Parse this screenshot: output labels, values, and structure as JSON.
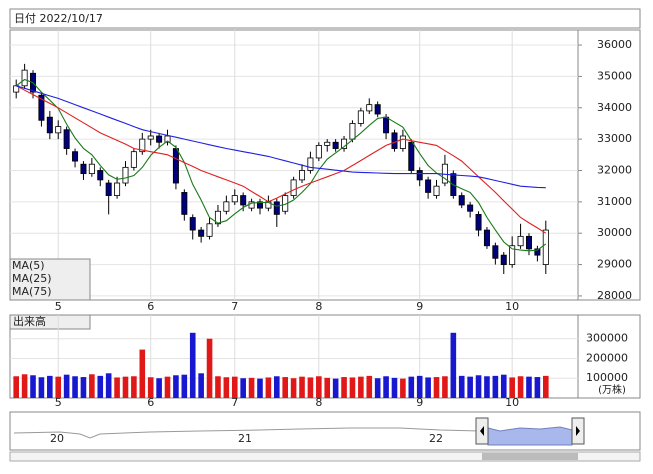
{
  "chart_data": {
    "type": "candlestick",
    "title": "日付 2022/10/17",
    "categories": [
      null,
      null,
      null,
      null,
      null,
      "5",
      null,
      null,
      null,
      null,
      null,
      null,
      null,
      null,
      null,
      null,
      "6",
      null,
      null,
      null,
      null,
      null,
      null,
      null,
      null,
      null,
      "7",
      null,
      null,
      null,
      null,
      null,
      null,
      null,
      null,
      null,
      "8",
      null,
      null,
      null,
      null,
      null,
      null,
      null,
      null,
      null,
      null,
      null,
      "9",
      null,
      null,
      null,
      null,
      null,
      null,
      null,
      null,
      null,
      null,
      "10",
      null,
      null,
      null,
      null
    ],
    "ohlc": [
      [
        34500,
        34900,
        34300,
        34700
      ],
      [
        34700,
        35400,
        34600,
        35200
      ],
      [
        35100,
        35200,
        34300,
        34500
      ],
      [
        34400,
        34500,
        33400,
        33600
      ],
      [
        33700,
        33900,
        33000,
        33200
      ],
      [
        33200,
        33600,
        33000,
        33400
      ],
      [
        33300,
        33400,
        32500,
        32700
      ],
      [
        32600,
        32700,
        32100,
        32300
      ],
      [
        32200,
        32300,
        31700,
        31900
      ],
      [
        31900,
        32400,
        31800,
        32200
      ],
      [
        32000,
        32100,
        31500,
        31700
      ],
      [
        31600,
        31700,
        30600,
        31200
      ],
      [
        31200,
        31800,
        31100,
        31600
      ],
      [
        31600,
        32300,
        31500,
        32100
      ],
      [
        32100,
        32700,
        32000,
        32600
      ],
      [
        32600,
        33200,
        32500,
        33000
      ],
      [
        33000,
        33300,
        32800,
        33100
      ],
      [
        33100,
        33200,
        32700,
        32900
      ],
      [
        32900,
        33300,
        32800,
        33100
      ],
      [
        32700,
        32800,
        31400,
        31600
      ],
      [
        31300,
        31400,
        30400,
        30600
      ],
      [
        30500,
        30600,
        29800,
        30100
      ],
      [
        30100,
        30200,
        29700,
        29900
      ],
      [
        29900,
        30500,
        29800,
        30300
      ],
      [
        30300,
        30900,
        30200,
        30700
      ],
      [
        30700,
        31200,
        30600,
        31000
      ],
      [
        31000,
        31400,
        30900,
        31200
      ],
      [
        31200,
        31300,
        30700,
        30900
      ],
      [
        30800,
        31100,
        30700,
        31000
      ],
      [
        31000,
        31100,
        30600,
        30800
      ],
      [
        30800,
        31200,
        30700,
        31000
      ],
      [
        31000,
        31100,
        30200,
        30600
      ],
      [
        30700,
        31300,
        30600,
        31200
      ],
      [
        31200,
        31800,
        31100,
        31700
      ],
      [
        31700,
        32200,
        31600,
        32000
      ],
      [
        32000,
        32600,
        31900,
        32400
      ],
      [
        32400,
        32900,
        32300,
        32800
      ],
      [
        32800,
        33000,
        32600,
        32900
      ],
      [
        32900,
        33000,
        32600,
        32700
      ],
      [
        32700,
        33100,
        32600,
        33000
      ],
      [
        33000,
        33600,
        32900,
        33500
      ],
      [
        33500,
        34000,
        33400,
        33900
      ],
      [
        33900,
        34300,
        33800,
        34100
      ],
      [
        34100,
        34200,
        33700,
        33800
      ],
      [
        33700,
        33800,
        33000,
        33200
      ],
      [
        33200,
        33300,
        32600,
        32700
      ],
      [
        32700,
        33300,
        32600,
        33100
      ],
      [
        32900,
        33000,
        31900,
        32000
      ],
      [
        32000,
        32100,
        31500,
        31700
      ],
      [
        31700,
        31800,
        31100,
        31300
      ],
      [
        31200,
        31700,
        31100,
        31500
      ],
      [
        31600,
        32500,
        31500,
        32200
      ],
      [
        31900,
        32000,
        31100,
        31200
      ],
      [
        31200,
        31300,
        30800,
        30900
      ],
      [
        30900,
        31000,
        30500,
        30700
      ],
      [
        30600,
        30700,
        29900,
        30100
      ],
      [
        30100,
        30200,
        29500,
        29600
      ],
      [
        29600,
        29700,
        29000,
        29200
      ],
      [
        29300,
        29400,
        28700,
        29000
      ],
      [
        29000,
        29900,
        28900,
        29600
      ],
      [
        29600,
        30300,
        29500,
        29900
      ],
      [
        29900,
        30000,
        29300,
        29500
      ],
      [
        29500,
        29600,
        29100,
        29300
      ],
      [
        29000,
        30400,
        28700,
        30100
      ]
    ],
    "up_color": "#ffffff",
    "down_color": "#00007a",
    "series": [
      {
        "name": "MA(5)",
        "color": "#1a7a1a",
        "values": [
          34700,
          34900,
          34800,
          34500,
          34240,
          33980,
          33480,
          33040,
          32700,
          32500,
          32160,
          31860,
          31720,
          31760,
          31840,
          32100,
          32480,
          32740,
          32940,
          32740,
          32260,
          31560,
          31060,
          30500,
          30320,
          30400,
          30620,
          30820,
          30960,
          30980,
          30980,
          30860,
          30920,
          31060,
          31300,
          31580,
          32020,
          32360,
          32560,
          32760,
          32980,
          33200,
          33440,
          33660,
          33700,
          33540,
          33380,
          32960,
          32540,
          32160,
          31920,
          31740,
          31540,
          31420,
          31300,
          30980,
          30500,
          30100,
          29720,
          29500,
          29460,
          29440,
          29460,
          29660
        ]
      },
      {
        "name": "MA(25)",
        "color": "#e02020",
        "values": [
          34700,
          34560,
          34420,
          34280,
          34140,
          34000,
          33840,
          33680,
          33520,
          33360,
          33200,
          33080,
          32960,
          32840,
          32700,
          32650,
          32600,
          32550,
          32500,
          32380,
          32250,
          32130,
          32000,
          31900,
          31800,
          31700,
          31600,
          31500,
          31330,
          31170,
          31000,
          31120,
          31250,
          31380,
          31500,
          31600,
          31700,
          31800,
          31900,
          32000,
          32160,
          32320,
          32480,
          32640,
          32800,
          32900,
          33000,
          32950,
          32900,
          32850,
          32800,
          32630,
          32470,
          32300,
          32050,
          31800,
          31550,
          31300,
          31030,
          30770,
          30500,
          30330,
          30170,
          30000
        ]
      },
      {
        "name": "MA(75)",
        "color": "#2020e0",
        "values": [
          34700,
          34620,
          34540,
          34460,
          34380,
          34300,
          34200,
          34100,
          34000,
          33900,
          33800,
          33700,
          33600,
          33500,
          33400,
          33300,
          33240,
          33180,
          33120,
          33060,
          33000,
          32940,
          32880,
          32820,
          32760,
          32700,
          32650,
          32600,
          32550,
          32500,
          32450,
          32380,
          32310,
          32240,
          32170,
          32100,
          32070,
          32040,
          32010,
          31980,
          31950,
          31940,
          31930,
          31920,
          31910,
          31900,
          31900,
          31900,
          31900,
          31900,
          31900,
          31880,
          31860,
          31840,
          31820,
          31800,
          31740,
          31680,
          31620,
          31560,
          31500,
          31480,
          31460,
          31450
        ]
      }
    ],
    "ylim": [
      27870,
      36480
    ],
    "yticks": [
      28000,
      29000,
      30000,
      31000,
      32000,
      33000,
      34000,
      35000,
      36000
    ],
    "grid": true,
    "volume": {
      "label": "出来高",
      "unit": "(万株)",
      "up_color": "#e01818",
      "down_color": "#1818d0",
      "values": [
        110000,
        120000,
        115000,
        105000,
        112000,
        108000,
        118000,
        110000,
        106000,
        120000,
        112000,
        125000,
        104000,
        108000,
        110000,
        245000,
        105000,
        100000,
        108000,
        115000,
        118000,
        330000,
        125000,
        300000,
        110000,
        105000,
        108000,
        100000,
        102000,
        98000,
        104000,
        110000,
        106000,
        100000,
        108000,
        104000,
        110000,
        102000,
        98000,
        106000,
        104000,
        108000,
        112000,
        100000,
        110000,
        102000,
        98000,
        108000,
        112000,
        104000,
        106000,
        110000,
        330000,
        112000,
        108000,
        115000,
        110000,
        112000,
        118000,
        104000,
        110000,
        108000,
        106000,
        112000
      ],
      "ylim": [
        0,
        420000
      ],
      "yticks": [
        100000,
        200000,
        300000
      ]
    },
    "navigator": {
      "labels": [
        "20",
        "21",
        "22"
      ]
    }
  }
}
